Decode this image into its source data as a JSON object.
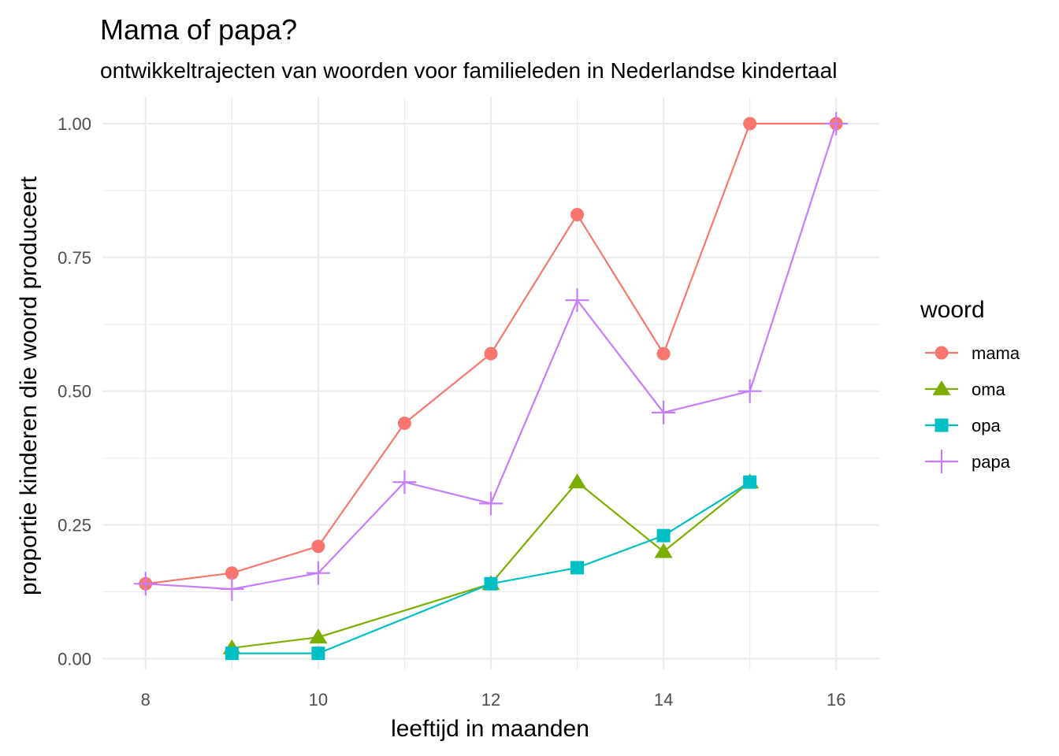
{
  "chart_data": {
    "type": "line",
    "title": "Mama of papa?",
    "subtitle": "ontwikkeltrajecten van woorden voor familieleden in Nederlandse kindertaal",
    "xlabel": "leeftijd in maanden",
    "ylabel": "proportie kinderen die woord produceert",
    "xlim": [
      7.5,
      16.5
    ],
    "ylim": [
      -0.02,
      1.05
    ],
    "xticks": [
      8,
      10,
      12,
      14,
      16
    ],
    "yticks": [
      0.0,
      0.25,
      0.5,
      0.75,
      1.0
    ],
    "ytick_labels": [
      "0.00",
      "0.25",
      "0.50",
      "0.75",
      "1.00"
    ],
    "grid": true,
    "legend": {
      "title": "woord",
      "position": "right"
    },
    "series": [
      {
        "name": "mama",
        "color": "#F8766D",
        "marker": "circle",
        "x": [
          8,
          9,
          10,
          11,
          12,
          13,
          14,
          15,
          16
        ],
        "y": [
          0.14,
          0.16,
          0.21,
          0.44,
          0.57,
          0.83,
          0.57,
          1.0,
          1.0
        ]
      },
      {
        "name": "oma",
        "color": "#7CAE00",
        "marker": "triangle",
        "x": [
          9,
          10,
          12,
          13,
          14,
          15
        ],
        "y": [
          0.02,
          0.04,
          0.14,
          0.33,
          0.2,
          0.33
        ]
      },
      {
        "name": "opa",
        "color": "#00BFC4",
        "marker": "square",
        "x": [
          9,
          10,
          12,
          13,
          14,
          15
        ],
        "y": [
          0.01,
          0.01,
          0.14,
          0.17,
          0.23,
          0.33
        ]
      },
      {
        "name": "papa",
        "color": "#C77CFF",
        "marker": "plus",
        "x": [
          8,
          9,
          10,
          11,
          12,
          13,
          14,
          15,
          16
        ],
        "y": [
          0.14,
          0.13,
          0.16,
          0.33,
          0.29,
          0.67,
          0.46,
          0.5,
          1.0
        ]
      }
    ]
  }
}
